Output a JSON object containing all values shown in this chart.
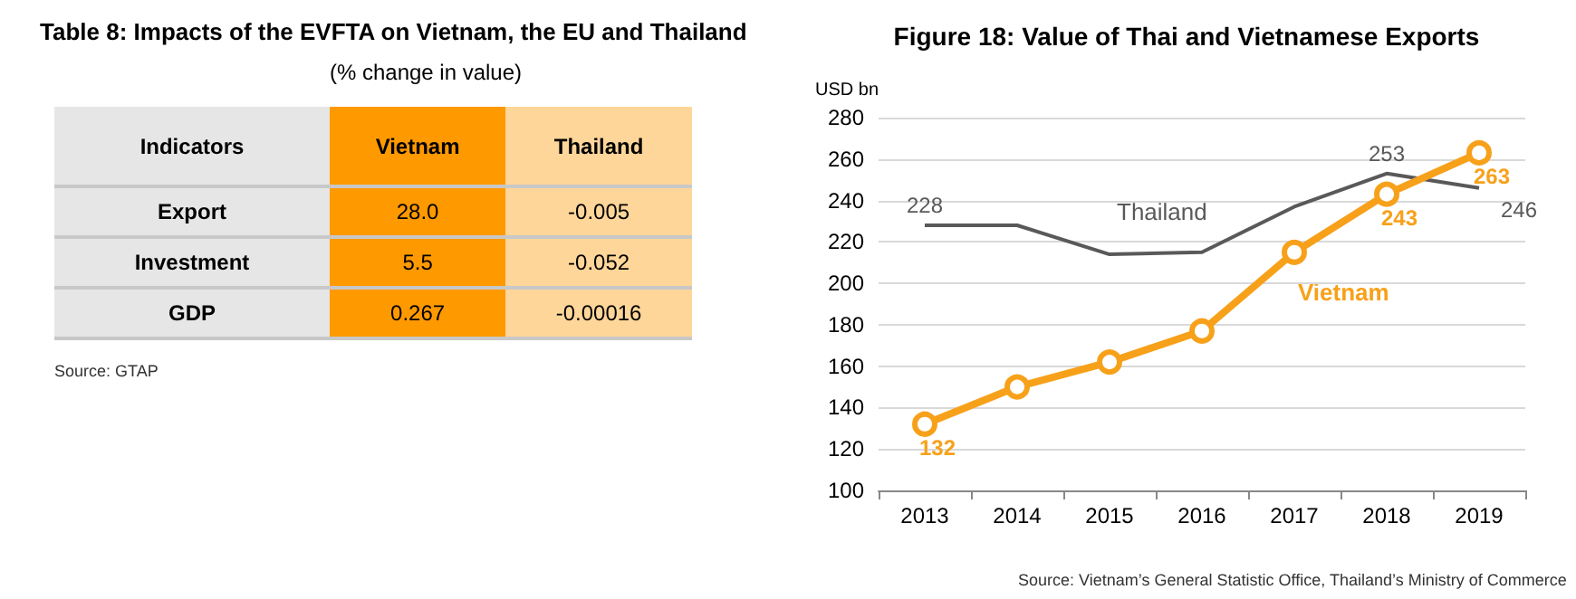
{
  "chart_data": [
    {
      "type": "other",
      "title": "Table 8: Impacts of the EVFTA on Vietnam, the EU and Thailand",
      "subtitle": "(% change in value)",
      "xlabel": "Indicators",
      "categories": [
        "Export",
        "Investment",
        "GDP"
      ],
      "series": [
        {
          "name": "Vietnam",
          "color": "#ff9900",
          "values": [
            28.0,
            5.5,
            0.267
          ],
          "value_labels": [
            "28.0",
            "5.5",
            "0.267"
          ]
        },
        {
          "name": "Thailand",
          "color": "#ffd699",
          "values": [
            -0.005,
            -0.052,
            -0.00016
          ],
          "value_labels": [
            "-0.005",
            "-0.052",
            "-0.00016"
          ]
        }
      ],
      "annotations": [
        "Source: GTAP"
      ]
    },
    {
      "type": "line",
      "title": "Figure 18: Value of Thai and Vietnamese Exports",
      "ylabel": "USD bn",
      "categories": [
        "2013",
        "2014",
        "2015",
        "2016",
        "2017",
        "2018",
        "2019"
      ],
      "series": [
        {
          "name": "Thailand",
          "color": "#595959",
          "marker": "none",
          "values": [
            228,
            228,
            214,
            215,
            237,
            253,
            246
          ],
          "value_labels": [
            "228",
            null,
            null,
            null,
            null,
            "253",
            "246"
          ]
        },
        {
          "name": "Vietnam",
          "color": "#f7a11a",
          "marker": "circle",
          "values": [
            132,
            150,
            162,
            177,
            215,
            243,
            263
          ],
          "value_labels": [
            "132",
            null,
            null,
            null,
            null,
            "243",
            "263"
          ]
        }
      ],
      "ylim": [
        100,
        280
      ],
      "yticks": [
        100,
        120,
        140,
        160,
        180,
        200,
        220,
        240,
        260,
        280
      ],
      "grid": "y",
      "legend": false,
      "annotations": [
        "Source: Vietnam’s General Statistic Office, Thailand’s Ministry of Commerce"
      ]
    }
  ]
}
